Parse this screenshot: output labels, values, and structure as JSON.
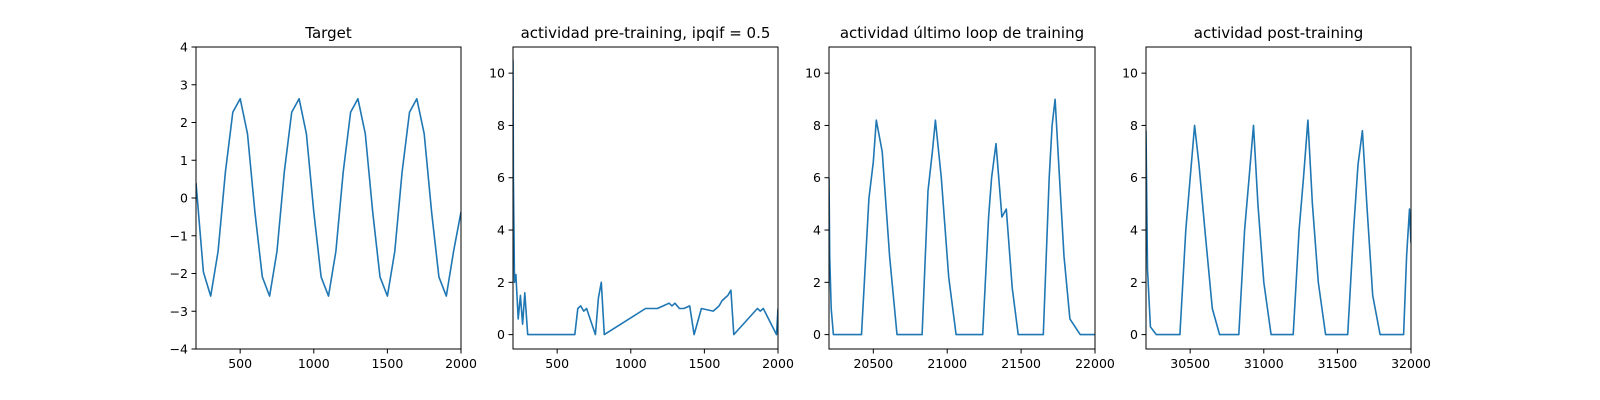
{
  "chart_data": [
    {
      "type": "line",
      "title": "Target",
      "xlabel": "",
      "ylabel": "",
      "xlim": [
        200,
        2000
      ],
      "ylim": [
        -4,
        4
      ],
      "xticks": [
        500,
        1000,
        1500,
        2000
      ],
      "xtick_labels": [
        "500",
        "1000",
        "1500",
        "2000"
      ],
      "yticks": [
        -4,
        -3,
        -2,
        -1,
        0,
        1,
        2,
        3,
        4
      ],
      "ytick_labels": [
        "−4",
        "−3",
        "−2",
        "−1",
        "0",
        "1",
        "2",
        "3",
        "4"
      ],
      "color": "#1f77b4",
      "series": [
        {
          "x": [
            200,
            250,
            300,
            350,
            400,
            450,
            500,
            550,
            600,
            650,
            700,
            750,
            800,
            850,
            900,
            950,
            1000,
            1050,
            1100,
            1150,
            1200,
            1250,
            1300,
            1350,
            1400,
            1450,
            1500,
            1550,
            1600,
            1650,
            1700,
            1750,
            1800,
            1850,
            1900,
            1950,
            2000
          ],
          "y": [
            0.4,
            -1.96,
            -2.6,
            -1.41,
            0.69,
            2.27,
            2.63,
            1.7,
            -0.37,
            -2.09,
            -2.6,
            -1.41,
            0.69,
            2.27,
            2.63,
            1.7,
            -0.37,
            -2.09,
            -2.6,
            -1.41,
            0.69,
            2.27,
            2.63,
            1.7,
            -0.37,
            -2.09,
            -2.6,
            -1.41,
            0.69,
            2.27,
            2.63,
            1.7,
            -0.37,
            -2.09,
            -2.6,
            -1.41,
            -0.37
          ]
        }
      ]
    },
    {
      "type": "line",
      "title": "actividad pre-training, ipqif = 0.5",
      "xlabel": "",
      "ylabel": "",
      "xlim": [
        200,
        2000
      ],
      "ylim": [
        -0.55,
        11
      ],
      "xticks": [
        500,
        1000,
        1500,
        2000
      ],
      "xtick_labels": [
        "500",
        "1000",
        "1500",
        "2000"
      ],
      "yticks": [
        0,
        2,
        4,
        6,
        8,
        10
      ],
      "ytick_labels": [
        "0",
        "2",
        "4",
        "6",
        "8",
        "10"
      ],
      "color": "#1f77b4",
      "series": [
        {
          "x": [
            200,
            203,
            210,
            220,
            235,
            250,
            265,
            280,
            300,
            620,
            640,
            660,
            680,
            700,
            760,
            780,
            800,
            820,
            1100,
            1140,
            1180,
            1220,
            1260,
            1280,
            1300,
            1330,
            1360,
            1400,
            1430,
            1480,
            1560,
            1580,
            1600,
            1620,
            1640,
            1660,
            1680,
            1700,
            1860,
            1880,
            1900,
            1990,
            2000
          ],
          "y": [
            10.5,
            6.0,
            2.0,
            2.3,
            0.6,
            1.5,
            0.4,
            1.6,
            0.0,
            0.0,
            1.0,
            1.1,
            0.9,
            1.0,
            0.0,
            1.4,
            2.0,
            0.0,
            1.0,
            1.0,
            1.0,
            1.1,
            1.2,
            1.1,
            1.2,
            1.0,
            1.0,
            1.1,
            0.0,
            1.0,
            0.9,
            1.0,
            1.1,
            1.3,
            1.4,
            1.5,
            1.7,
            0.0,
            1.0,
            0.9,
            1.0,
            0.0,
            1.0
          ]
        }
      ]
    },
    {
      "type": "line",
      "title": "actividad último loop de training",
      "xlabel": "",
      "ylabel": "",
      "xlim": [
        20200,
        22000
      ],
      "ylim": [
        -0.55,
        11
      ],
      "xticks": [
        20500,
        21000,
        21500,
        22000
      ],
      "xtick_labels": [
        "20500",
        "21000",
        "21500",
        "22000"
      ],
      "yticks": [
        0,
        2,
        4,
        6,
        8,
        10
      ],
      "ytick_labels": [
        "0",
        "2",
        "4",
        "6",
        "8",
        "10"
      ],
      "color": "#1f77b4",
      "series": [
        {
          "x": [
            20200,
            20205,
            20215,
            20230,
            20260,
            20420,
            20470,
            20500,
            20520,
            20560,
            20610,
            20660,
            20830,
            20870,
            20900,
            20920,
            20960,
            21010,
            21060,
            21240,
            21280,
            21300,
            21330,
            21370,
            21400,
            21440,
            21480,
            21650,
            21690,
            21710,
            21730,
            21760,
            21790,
            21830,
            21900,
            22000
          ],
          "y": [
            6.0,
            3.0,
            1.0,
            0.0,
            0.0,
            0.0,
            5.2,
            6.6,
            8.2,
            7.0,
            3.0,
            0.0,
            0.0,
            5.5,
            7.0,
            8.2,
            6.0,
            2.2,
            0.0,
            0.0,
            4.5,
            6.0,
            7.3,
            4.5,
            4.8,
            1.8,
            0.0,
            0.0,
            6.0,
            8.0,
            9.0,
            6.0,
            3.0,
            0.6,
            0.0,
            0.0
          ]
        }
      ]
    },
    {
      "type": "line",
      "title": "actividad post-training",
      "xlabel": "",
      "ylabel": "",
      "xlim": [
        30200,
        32000
      ],
      "ylim": [
        -0.55,
        11
      ],
      "xticks": [
        30500,
        31000,
        31500,
        32000
      ],
      "xtick_labels": [
        "30500",
        "31000",
        "31500",
        "32000"
      ],
      "yticks": [
        0,
        2,
        4,
        6,
        8,
        10
      ],
      "ytick_labels": [
        "0",
        "2",
        "4",
        "6",
        "8",
        "10"
      ],
      "color": "#1f77b4",
      "series": [
        {
          "x": [
            30200,
            30210,
            30230,
            30270,
            30430,
            30470,
            30500,
            30530,
            30560,
            30600,
            30650,
            30700,
            30830,
            30870,
            30900,
            30930,
            30960,
            31000,
            31050,
            31200,
            31240,
            31270,
            31300,
            31330,
            31370,
            31420,
            31570,
            31610,
            31640,
            31670,
            31700,
            31740,
            31790,
            31950,
            31970,
            31990,
            32000
          ],
          "y": [
            7.8,
            2.5,
            0.3,
            0.0,
            0.0,
            4.0,
            6.0,
            8.0,
            6.5,
            4.0,
            1.0,
            0.0,
            0.0,
            4.0,
            6.0,
            8.0,
            5.0,
            2.0,
            0.0,
            0.0,
            4.0,
            6.0,
            8.2,
            5.0,
            2.0,
            0.0,
            0.0,
            4.0,
            6.5,
            7.8,
            5.0,
            1.5,
            0.0,
            0.0,
            3.0,
            4.8,
            3.5
          ]
        }
      ]
    }
  ]
}
